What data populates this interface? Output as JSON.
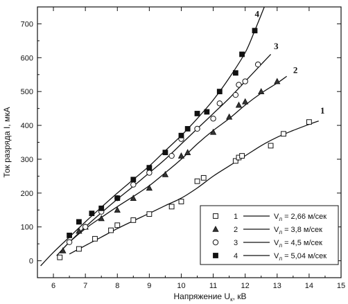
{
  "chart_data": {
    "type": "scatter",
    "xlabel": {
      "main": "Напряжение  U",
      "sub": "к",
      "unit": ", кВ"
    },
    "ylabel": {
      "main": "Ток разряда  I, мкА"
    },
    "xlim": [
      5.5,
      15
    ],
    "ylim": [
      -50,
      750
    ],
    "xticks": [
      6,
      7,
      8,
      9,
      10,
      11,
      12,
      13,
      14,
      15
    ],
    "yticks": [
      0,
      100,
      200,
      300,
      400,
      500,
      600,
      700
    ],
    "grid": false,
    "legend_position": "bottom-right",
    "series": [
      {
        "name": "1",
        "legend_prefix": "V",
        "legend_sub": "л",
        "legend_value": " = 2,66 м/сек",
        "marker": "square-open",
        "curve_label": "1",
        "points": [
          [
            6.2,
            10
          ],
          [
            6.8,
            35
          ],
          [
            7.3,
            65
          ],
          [
            7.8,
            90
          ],
          [
            8.0,
            105
          ],
          [
            8.5,
            120
          ],
          [
            9.0,
            138
          ],
          [
            9.7,
            160
          ],
          [
            10.0,
            175
          ],
          [
            10.5,
            235
          ],
          [
            10.7,
            245
          ],
          [
            11.7,
            295
          ],
          [
            11.8,
            305
          ],
          [
            11.9,
            310
          ],
          [
            12.8,
            340
          ],
          [
            13.2,
            375
          ],
          [
            14.0,
            410
          ]
        ],
        "curve": [
          [
            6.5,
            20
          ],
          [
            7,
            45
          ],
          [
            7.5,
            70
          ],
          [
            8,
            95
          ],
          [
            8.5,
            118
          ],
          [
            9,
            140
          ],
          [
            9.5,
            163
          ],
          [
            10,
            185
          ],
          [
            10.5,
            215
          ],
          [
            11,
            250
          ],
          [
            11.5,
            280
          ],
          [
            12,
            310
          ],
          [
            12.5,
            340
          ],
          [
            13,
            365
          ],
          [
            13.5,
            385
          ],
          [
            14,
            403
          ],
          [
            14.3,
            413
          ]
        ]
      },
      {
        "name": "2",
        "legend_prefix": "V",
        "legend_sub": "л",
        "legend_value": " = 3,8  м/сек",
        "marker": "triangle-filled",
        "curve_label": "2",
        "points": [
          [
            6.3,
            30
          ],
          [
            6.8,
            88
          ],
          [
            7.0,
            100
          ],
          [
            7.5,
            125
          ],
          [
            8.0,
            150
          ],
          [
            8.5,
            185
          ],
          [
            9.0,
            215
          ],
          [
            9.5,
            255
          ],
          [
            10.0,
            310
          ],
          [
            10.2,
            320
          ],
          [
            11.0,
            380
          ],
          [
            11.5,
            425
          ],
          [
            11.8,
            460
          ],
          [
            12.0,
            470
          ],
          [
            12.5,
            500
          ],
          [
            13.0,
            530
          ]
        ],
        "curve": [
          [
            6.2,
            25
          ],
          [
            6.5,
            55
          ],
          [
            7,
            95
          ],
          [
            7.5,
            128
          ],
          [
            8,
            160
          ],
          [
            8.5,
            190
          ],
          [
            9,
            222
          ],
          [
            9.5,
            260
          ],
          [
            10,
            300
          ],
          [
            10.5,
            345
          ],
          [
            11,
            385
          ],
          [
            11.5,
            420
          ],
          [
            12,
            460
          ],
          [
            12.5,
            495
          ],
          [
            13,
            525
          ],
          [
            13.3,
            545
          ]
        ]
      },
      {
        "name": "3",
        "legend_prefix": "V",
        "legend_sub": "л",
        "legend_value": " = 4,5  м/сек",
        "marker": "circle-open",
        "curve_label": "3",
        "points": [
          [
            6.5,
            55
          ],
          [
            7.0,
            100
          ],
          [
            7.5,
            145
          ],
          [
            8.0,
            185
          ],
          [
            8.5,
            225
          ],
          [
            9.0,
            260
          ],
          [
            9.7,
            310
          ],
          [
            10.0,
            360
          ],
          [
            10.5,
            390
          ],
          [
            11.0,
            420
          ],
          [
            11.2,
            465
          ],
          [
            11.7,
            490
          ],
          [
            11.8,
            520
          ],
          [
            12.0,
            530
          ],
          [
            12.4,
            580
          ]
        ],
        "curve": [
          [
            6.1,
            15
          ],
          [
            6.5,
            55
          ],
          [
            7,
            100
          ],
          [
            7.5,
            142
          ],
          [
            8,
            182
          ],
          [
            8.5,
            220
          ],
          [
            9,
            260
          ],
          [
            9.5,
            300
          ],
          [
            10,
            345
          ],
          [
            10.5,
            390
          ],
          [
            11,
            435
          ],
          [
            11.5,
            480
          ],
          [
            12,
            530
          ],
          [
            12.5,
            580
          ],
          [
            12.8,
            610
          ]
        ]
      },
      {
        "name": "4",
        "legend_prefix": "V",
        "legend_sub": "л",
        "legend_value": " = 5,04 м/сек",
        "marker": "square-filled",
        "curve_label": "4",
        "points": [
          [
            6.5,
            75
          ],
          [
            6.8,
            115
          ],
          [
            7.2,
            140
          ],
          [
            7.5,
            155
          ],
          [
            8.0,
            185
          ],
          [
            8.5,
            240
          ],
          [
            9.0,
            275
          ],
          [
            9.5,
            320
          ],
          [
            10.0,
            370
          ],
          [
            10.2,
            390
          ],
          [
            10.5,
            435
          ],
          [
            10.8,
            440
          ],
          [
            11.2,
            500
          ],
          [
            11.7,
            555
          ],
          [
            11.9,
            610
          ],
          [
            12.3,
            680
          ]
        ],
        "curve": [
          [
            5.6,
            -15
          ],
          [
            6,
            25
          ],
          [
            6.5,
            70
          ],
          [
            7,
            115
          ],
          [
            7.5,
            158
          ],
          [
            8,
            200
          ],
          [
            8.5,
            240
          ],
          [
            9,
            280
          ],
          [
            9.5,
            325
          ],
          [
            10,
            370
          ],
          [
            10.5,
            420
          ],
          [
            11,
            475
          ],
          [
            11.5,
            540
          ],
          [
            12,
            615
          ],
          [
            12.3,
            680
          ],
          [
            12.6,
            750
          ]
        ]
      }
    ]
  }
}
